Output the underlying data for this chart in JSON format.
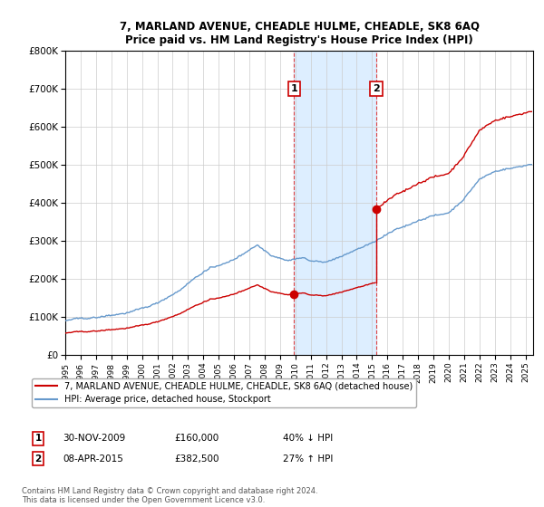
{
  "title": "7, MARLAND AVENUE, CHEADLE HULME, CHEADLE, SK8 6AQ",
  "subtitle": "Price paid vs. HM Land Registry's House Price Index (HPI)",
  "property_label": "7, MARLAND AVENUE, CHEADLE HULME, CHEADLE, SK8 6AQ (detached house)",
  "hpi_label": "HPI: Average price, detached house, Stockport",
  "sale1_date": "30-NOV-2009",
  "sale1_price": "£160,000",
  "sale1_hpi": "40% ↓ HPI",
  "sale1_x": 2009.92,
  "sale1_y": 160000,
  "sale2_date": "08-APR-2015",
  "sale2_price": "£382,500",
  "sale2_hpi": "27% ↑ HPI",
  "sale2_x": 2015.27,
  "sale2_y": 382500,
  "ylim": [
    0,
    800000
  ],
  "xlim": [
    1995.0,
    2025.5
  ],
  "property_color": "#cc0000",
  "hpi_color": "#6699cc",
  "shade_color": "#ddeeff",
  "background_color": "#ffffff",
  "grid_color": "#cccccc",
  "footnote": "Contains HM Land Registry data © Crown copyright and database right 2024.\nThis data is licensed under the Open Government Licence v3.0."
}
